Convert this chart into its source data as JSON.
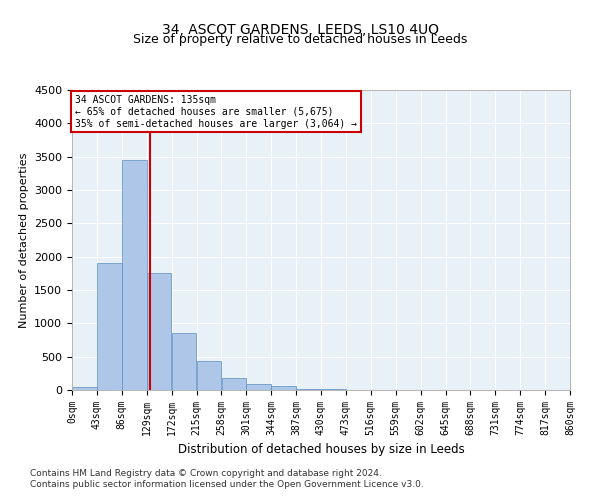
{
  "title": "34, ASCOT GARDENS, LEEDS, LS10 4UQ",
  "subtitle": "Size of property relative to detached houses in Leeds",
  "xlabel": "Distribution of detached houses by size in Leeds",
  "ylabel": "Number of detached properties",
  "footer_line1": "Contains HM Land Registry data © Crown copyright and database right 2024.",
  "footer_line2": "Contains public sector information licensed under the Open Government Licence v3.0.",
  "bar_edges": [
    0,
    43,
    86,
    129,
    172,
    215,
    258,
    301,
    344,
    387,
    430,
    473,
    516,
    559,
    602,
    645,
    688,
    731,
    774,
    817,
    860
  ],
  "bar_values": [
    50,
    1900,
    3450,
    1750,
    850,
    430,
    175,
    95,
    55,
    20,
    10,
    5,
    5,
    5,
    3,
    3,
    3,
    3,
    3,
    3
  ],
  "bar_color": "#aec6e8",
  "bar_edge_color": "#5a8fc0",
  "property_size": 135,
  "vline_color": "#cc0000",
  "annotation_line1": "34 ASCOT GARDENS: 135sqm",
  "annotation_line2": "← 65% of detached houses are smaller (5,675)",
  "annotation_line3": "35% of semi-detached houses are larger (3,064) →",
  "annotation_box_color": "#cc0000",
  "ylim": [
    0,
    4500
  ],
  "yticks": [
    0,
    500,
    1000,
    1500,
    2000,
    2500,
    3000,
    3500,
    4000,
    4500
  ],
  "bg_color": "#e8f0f8",
  "grid_color": "#ffffff",
  "tick_label_size": 7,
  "title_fontsize": 10,
  "subtitle_fontsize": 9,
  "footer_fontsize": 6.5
}
